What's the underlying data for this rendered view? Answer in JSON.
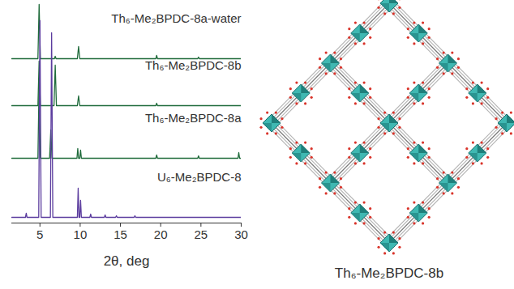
{
  "chart_data": {
    "type": "line",
    "xlabel": "2θ, deg",
    "xlim": [
      1.5,
      30
    ],
    "xticks": [
      5,
      10,
      15,
      20,
      25,
      30
    ],
    "ylim": [
      0,
      275
    ],
    "tick_labels": "x",
    "grid": false,
    "series": [
      {
        "name": "Th₆-Me₂BPDC-8a-water",
        "color": "#1f6b3b",
        "x": [
          1.5,
          4.75,
          4.9,
          5.05,
          6.8,
          6.9,
          7.0,
          9.65,
          9.8,
          9.95,
          19.4,
          19.5,
          19.6,
          24.6,
          24.7,
          24.8,
          30
        ],
        "values": [
          203,
          203,
          270,
          203,
          203,
          206,
          203,
          203,
          218,
          203,
          203,
          207,
          203,
          203,
          205,
          203,
          203
        ]
      },
      {
        "name": "Th₆-Me₂BPDC-8b",
        "color": "#1f6b3b",
        "x": [
          1.5,
          4.75,
          4.9,
          5.05,
          6.75,
          6.9,
          7.05,
          9.65,
          9.8,
          9.95,
          19.4,
          19.5,
          19.6,
          30
        ],
        "values": [
          145,
          145,
          200,
          145,
          145,
          195,
          145,
          145,
          157,
          145,
          145,
          148,
          145,
          145
        ]
      },
      {
        "name": "Th₆-Me₂BPDC-8a",
        "color": "#1f6b3b",
        "x": [
          1.5,
          4.75,
          4.9,
          5.05,
          6.2,
          6.35,
          6.5,
          9.6,
          9.7,
          9.8,
          9.95,
          10.05,
          10.15,
          19.4,
          19.5,
          19.6,
          24.6,
          24.7,
          24.8,
          29.6,
          29.7,
          29.8,
          30
        ],
        "values": [
          80,
          80,
          175,
          80,
          80,
          115,
          80,
          80,
          92,
          80,
          80,
          90,
          80,
          80,
          84,
          80,
          80,
          83,
          80,
          80,
          87,
          80,
          80
        ]
      },
      {
        "name": "U₆-Me₂BPDC-8",
        "color": "#5b3c9e",
        "x": [
          1.5,
          3.2,
          3.3,
          3.4,
          4.85,
          5.0,
          5.15,
          6.3,
          6.45,
          6.6,
          9.65,
          9.75,
          9.85,
          9.95,
          10.05,
          10.15,
          11.2,
          11.3,
          11.4,
          13.0,
          13.1,
          13.2,
          14.4,
          14.5,
          14.6,
          16.7,
          16.8,
          16.9,
          30
        ],
        "values": [
          7,
          7,
          12,
          7,
          7,
          250,
          7,
          7,
          235,
          7,
          7,
          43,
          7,
          7,
          28,
          7,
          7,
          11,
          7,
          7,
          10,
          7,
          7,
          9,
          7,
          7,
          9,
          7,
          7
        ]
      }
    ]
  },
  "structure": {
    "caption": "Th₆-Me₂BPDC-8b"
  }
}
